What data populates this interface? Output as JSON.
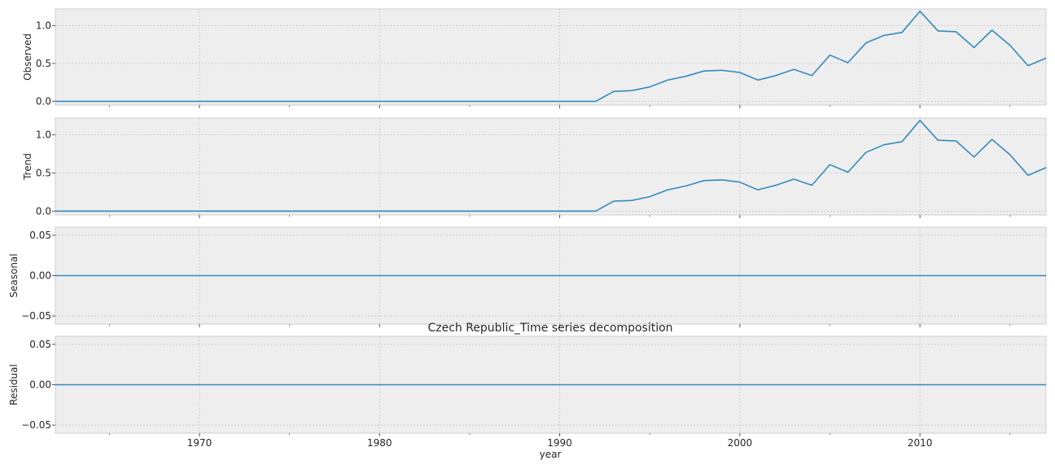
{
  "chart_data": {
    "type": "line",
    "title": "Czech Republic_Time series decomposition",
    "xlabel": "year",
    "xlim": [
      1962,
      2017
    ],
    "x_ticks": [
      1970,
      1980,
      1990,
      2000,
      2010
    ],
    "grid": true,
    "line_color": "#348abd",
    "background_color": "#eeeeee",
    "grid_color": "#c8c8c8",
    "panels": [
      {
        "ylabel": "Observed",
        "ylim": [
          -0.05,
          1.22
        ],
        "y_ticks": [
          0.0,
          0.5,
          1.0
        ],
        "y_tick_labels": [
          "0.0",
          "0.5",
          "1.0"
        ],
        "x": [
          1962,
          1963,
          1964,
          1965,
          1966,
          1967,
          1968,
          1969,
          1970,
          1971,
          1972,
          1973,
          1974,
          1975,
          1976,
          1977,
          1978,
          1979,
          1980,
          1981,
          1982,
          1983,
          1984,
          1985,
          1986,
          1987,
          1988,
          1989,
          1990,
          1991,
          1992,
          1993,
          1994,
          1995,
          1996,
          1997,
          1998,
          1999,
          2000,
          2001,
          2002,
          2003,
          2004,
          2005,
          2006,
          2007,
          2008,
          2009,
          2010,
          2011,
          2012,
          2013,
          2014,
          2015,
          2016,
          2017
        ],
        "values": [
          0,
          0,
          0,
          0,
          0,
          0,
          0,
          0,
          0,
          0,
          0,
          0,
          0,
          0,
          0,
          0,
          0,
          0,
          0,
          0,
          0,
          0,
          0,
          0,
          0,
          0,
          0,
          0,
          0,
          0,
          0,
          0.13,
          0.14,
          0.19,
          0.28,
          0.33,
          0.4,
          0.41,
          0.38,
          0.28,
          0.34,
          0.42,
          0.34,
          0.61,
          0.51,
          0.77,
          0.87,
          0.91,
          1.19,
          0.93,
          0.92,
          0.71,
          0.94,
          0.74,
          0.47,
          0.57
        ]
      },
      {
        "ylabel": "Trend",
        "ylim": [
          -0.05,
          1.22
        ],
        "y_ticks": [
          0.0,
          0.5,
          1.0
        ],
        "y_tick_labels": [
          "0.0",
          "0.5",
          "1.0"
        ],
        "x": [
          1962,
          1963,
          1964,
          1965,
          1966,
          1967,
          1968,
          1969,
          1970,
          1971,
          1972,
          1973,
          1974,
          1975,
          1976,
          1977,
          1978,
          1979,
          1980,
          1981,
          1982,
          1983,
          1984,
          1985,
          1986,
          1987,
          1988,
          1989,
          1990,
          1991,
          1992,
          1993,
          1994,
          1995,
          1996,
          1997,
          1998,
          1999,
          2000,
          2001,
          2002,
          2003,
          2004,
          2005,
          2006,
          2007,
          2008,
          2009,
          2010,
          2011,
          2012,
          2013,
          2014,
          2015,
          2016,
          2017
        ],
        "values": [
          0,
          0,
          0,
          0,
          0,
          0,
          0,
          0,
          0,
          0,
          0,
          0,
          0,
          0,
          0,
          0,
          0,
          0,
          0,
          0,
          0,
          0,
          0,
          0,
          0,
          0,
          0,
          0,
          0,
          0,
          0,
          0.13,
          0.14,
          0.19,
          0.28,
          0.33,
          0.4,
          0.41,
          0.38,
          0.28,
          0.34,
          0.42,
          0.34,
          0.61,
          0.51,
          0.77,
          0.87,
          0.91,
          1.19,
          0.93,
          0.92,
          0.71,
          0.94,
          0.74,
          0.47,
          0.57
        ]
      },
      {
        "ylabel": "Seasonal",
        "ylim": [
          -0.06,
          0.06
        ],
        "y_ticks": [
          -0.05,
          0.0,
          0.05
        ],
        "y_tick_labels": [
          "−0.05",
          "0.00",
          "0.05"
        ],
        "x": [
          1962,
          2017
        ],
        "values": [
          0,
          0
        ]
      },
      {
        "ylabel": "Residual",
        "ylim": [
          -0.06,
          0.06
        ],
        "y_ticks": [
          -0.05,
          0.0,
          0.05
        ],
        "y_tick_labels": [
          "−0.05",
          "0.00",
          "0.05"
        ],
        "x": [
          1962,
          2017
        ],
        "values": [
          0,
          0
        ]
      }
    ]
  }
}
